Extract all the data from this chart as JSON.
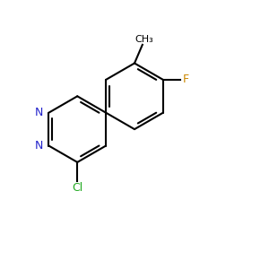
{
  "bond_color": "#000000",
  "N_color": "#2222cc",
  "Cl_color": "#22aa22",
  "F_color": "#cc8800",
  "background": "#ffffff",
  "line_width": 1.5,
  "figsize": [
    3.0,
    3.0
  ],
  "dpi": 100,
  "labels": {
    "CH3": "CH₃",
    "F": "F",
    "Cl": "Cl",
    "N1": "N",
    "N2": "N"
  },
  "label_colors": {
    "CH3": "#000000",
    "F": "#cc8800",
    "Cl": "#22aa22",
    "N1": "#2222cc",
    "N2": "#2222cc"
  }
}
